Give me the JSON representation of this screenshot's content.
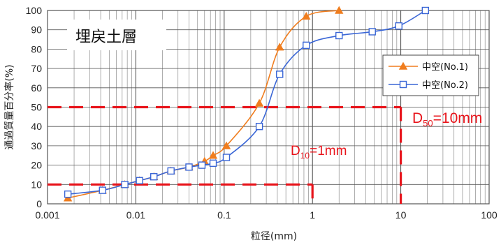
{
  "chart_data": {
    "type": "line",
    "title": "",
    "box_title": "埋戻土層",
    "xlabel": "粒径(mm)",
    "ylabel": "通過質量百分率(%)",
    "x_scale": "log",
    "xlim": [
      0.001,
      100
    ],
    "ylim": [
      0,
      100
    ],
    "x_ticks": [
      0.001,
      0.01,
      0.1,
      1,
      10,
      100
    ],
    "x_tick_labels": [
      "0.001",
      "0.01",
      "0.1",
      "1",
      "10",
      "100"
    ],
    "y_ticks": [
      0,
      10,
      20,
      30,
      40,
      50,
      60,
      70,
      80,
      90,
      100
    ],
    "y_tick_labels": [
      "0",
      "10",
      "20",
      "30",
      "40",
      "50",
      "60",
      "70",
      "80",
      "90",
      "100"
    ],
    "grid": true,
    "legend_position": "right",
    "series": [
      {
        "name": "中空(No.1)",
        "color": "#f07d1e",
        "marker": "filled-triangle",
        "x": [
          0.0017,
          0.0042,
          0.0075,
          0.011,
          0.016,
          0.025,
          0.04,
          0.06,
          0.075,
          0.106,
          0.25,
          0.425,
          0.85,
          2
        ],
        "y": [
          3,
          7,
          10,
          12,
          14,
          17,
          19,
          22,
          25,
          30,
          52,
          81,
          97,
          100
        ]
      },
      {
        "name": "中空(No.2)",
        "color": "#3a66d6",
        "marker": "open-square",
        "x": [
          0.0017,
          0.0042,
          0.0075,
          0.011,
          0.016,
          0.025,
          0.04,
          0.056,
          0.075,
          0.106,
          0.25,
          0.425,
          0.85,
          2,
          4.75,
          9.5,
          19
        ],
        "y": [
          5,
          7,
          10,
          12,
          14,
          17,
          19,
          20,
          21,
          24,
          40,
          67,
          82,
          87,
          89,
          92,
          100
        ]
      }
    ],
    "annotations": [
      {
        "type": "d-line",
        "x": 1,
        "y": 10,
        "color": "#e8141b",
        "label_main": "D",
        "label_sub": "10",
        "label_rest": "=1mm"
      },
      {
        "type": "d-line",
        "x": 10,
        "y": 50,
        "color": "#e8141b",
        "label_main": "D",
        "label_sub": "50",
        "label_rest": "=10mm"
      }
    ]
  }
}
